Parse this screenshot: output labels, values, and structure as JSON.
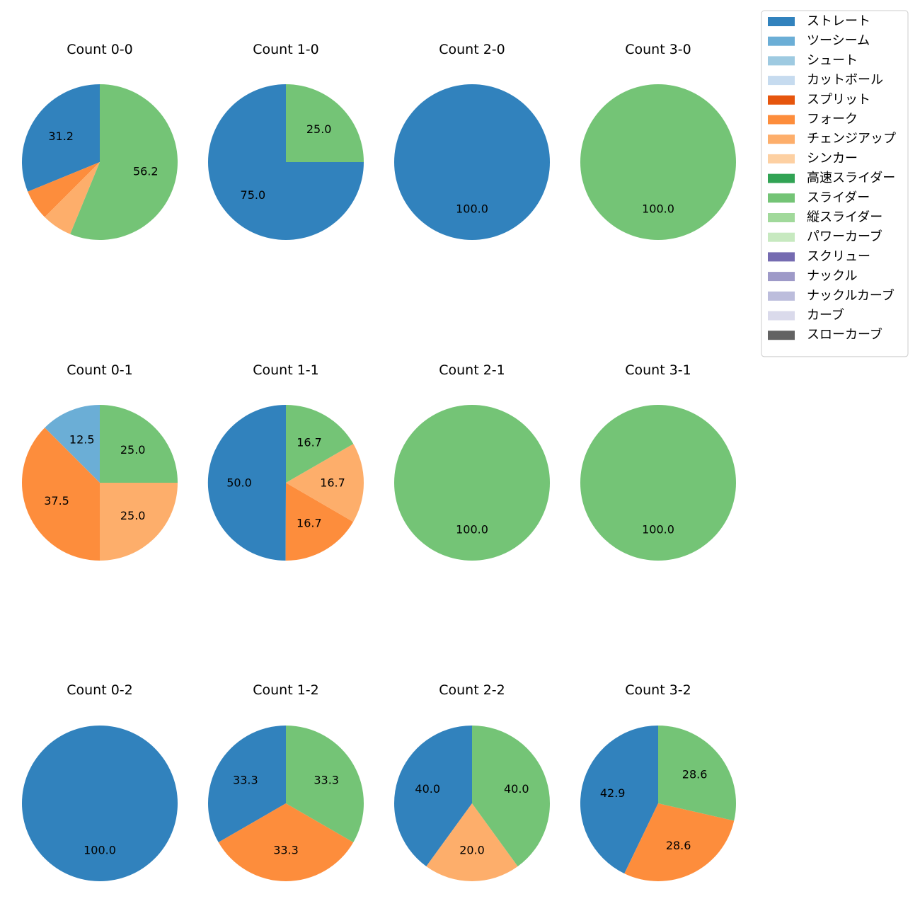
{
  "legend": [
    {
      "name": "ストレート",
      "color": "#3182bd"
    },
    {
      "name": "ツーシーム",
      "color": "#6baed6"
    },
    {
      "name": "シュート",
      "color": "#9ecae1"
    },
    {
      "name": "カットボール",
      "color": "#c6dbef"
    },
    {
      "name": "スプリット",
      "color": "#e6550d"
    },
    {
      "name": "フォーク",
      "color": "#fd8d3c"
    },
    {
      "name": "チェンジアップ",
      "color": "#fdae6b"
    },
    {
      "name": "シンカー",
      "color": "#fdd0a2"
    },
    {
      "name": "高速スライダー",
      "color": "#31a354"
    },
    {
      "name": "スライダー",
      "color": "#74c476"
    },
    {
      "name": "縦スライダー",
      "color": "#a1d99b"
    },
    {
      "name": "パワーカーブ",
      "color": "#c7e9c0"
    },
    {
      "name": "スクリュー",
      "color": "#756bb1"
    },
    {
      "name": "ナックル",
      "color": "#9e9ac8"
    },
    {
      "name": "ナックルカーブ",
      "color": "#bcbddc"
    },
    {
      "name": "カーブ",
      "color": "#dadaeb"
    },
    {
      "name": "スローカーブ",
      "color": "#636363"
    }
  ],
  "chart_data": [
    {
      "type": "pie",
      "title": "Count 0-0",
      "slices": [
        {
          "pitch": "ストレート",
          "value": 31.2,
          "label": "31.2"
        },
        {
          "pitch": "フォーク",
          "value": 6.3,
          "label": ""
        },
        {
          "pitch": "チェンジアップ",
          "value": 6.3,
          "label": ""
        },
        {
          "pitch": "スライダー",
          "value": 56.2,
          "label": "56.2"
        }
      ]
    },
    {
      "type": "pie",
      "title": "Count 1-0",
      "slices": [
        {
          "pitch": "ストレート",
          "value": 75.0,
          "label": "75.0"
        },
        {
          "pitch": "スライダー",
          "value": 25.0,
          "label": "25.0"
        }
      ]
    },
    {
      "type": "pie",
      "title": "Count 2-0",
      "slices": [
        {
          "pitch": "ストレート",
          "value": 100.0,
          "label": "100.0"
        }
      ]
    },
    {
      "type": "pie",
      "title": "Count 3-0",
      "slices": [
        {
          "pitch": "スライダー",
          "value": 100.0,
          "label": "100.0"
        }
      ]
    },
    {
      "type": "pie",
      "title": "Count 0-1",
      "slices": [
        {
          "pitch": "ツーシーム",
          "value": 12.5,
          "label": "12.5"
        },
        {
          "pitch": "フォーク",
          "value": 37.5,
          "label": "37.5"
        },
        {
          "pitch": "チェンジアップ",
          "value": 25.0,
          "label": "25.0"
        },
        {
          "pitch": "スライダー",
          "value": 25.0,
          "label": "25.0"
        }
      ]
    },
    {
      "type": "pie",
      "title": "Count 1-1",
      "slices": [
        {
          "pitch": "ストレート",
          "value": 50.0,
          "label": "50.0"
        },
        {
          "pitch": "フォーク",
          "value": 16.7,
          "label": "16.7"
        },
        {
          "pitch": "チェンジアップ",
          "value": 16.7,
          "label": "16.7"
        },
        {
          "pitch": "スライダー",
          "value": 16.7,
          "label": "16.7"
        }
      ]
    },
    {
      "type": "pie",
      "title": "Count 2-1",
      "slices": [
        {
          "pitch": "スライダー",
          "value": 100.0,
          "label": "100.0"
        }
      ]
    },
    {
      "type": "pie",
      "title": "Count 3-1",
      "slices": [
        {
          "pitch": "スライダー",
          "value": 100.0,
          "label": "100.0"
        }
      ]
    },
    {
      "type": "pie",
      "title": "Count 0-2",
      "slices": [
        {
          "pitch": "ストレート",
          "value": 100.0,
          "label": "100.0"
        }
      ]
    },
    {
      "type": "pie",
      "title": "Count 1-2",
      "slices": [
        {
          "pitch": "ストレート",
          "value": 33.3,
          "label": "33.3"
        },
        {
          "pitch": "フォーク",
          "value": 33.3,
          "label": "33.3"
        },
        {
          "pitch": "スライダー",
          "value": 33.3,
          "label": "33.3"
        }
      ]
    },
    {
      "type": "pie",
      "title": "Count 2-2",
      "slices": [
        {
          "pitch": "ストレート",
          "value": 40.0,
          "label": "40.0"
        },
        {
          "pitch": "チェンジアップ",
          "value": 20.0,
          "label": "20.0"
        },
        {
          "pitch": "スライダー",
          "value": 40.0,
          "label": "40.0"
        }
      ]
    },
    {
      "type": "pie",
      "title": "Count 3-2",
      "slices": [
        {
          "pitch": "ストレート",
          "value": 42.9,
          "label": "42.9"
        },
        {
          "pitch": "フォーク",
          "value": 28.6,
          "label": "28.6"
        },
        {
          "pitch": "スライダー",
          "value": 28.6,
          "label": "28.6"
        }
      ]
    }
  ]
}
